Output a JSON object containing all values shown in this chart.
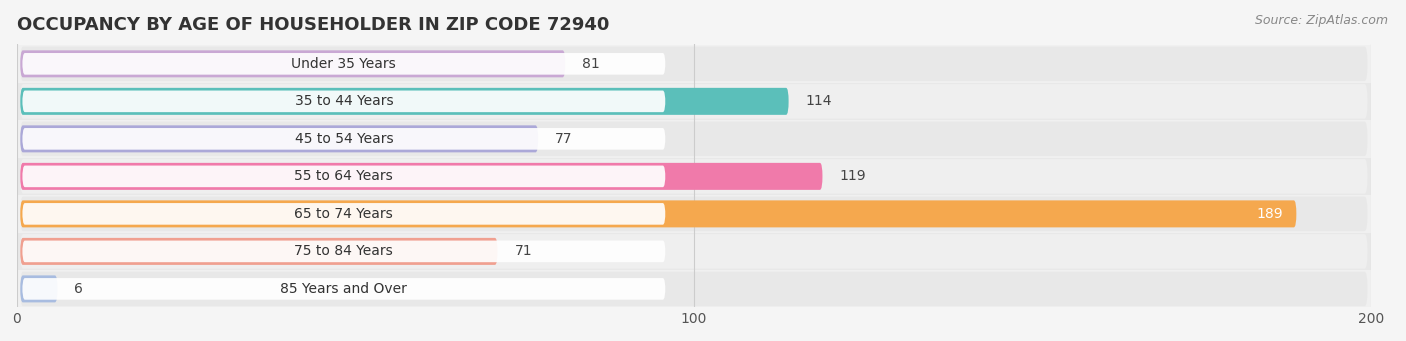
{
  "title": "OCCUPANCY BY AGE OF HOUSEHOLDER IN ZIP CODE 72940",
  "source": "Source: ZipAtlas.com",
  "categories": [
    "Under 35 Years",
    "35 to 44 Years",
    "45 to 54 Years",
    "55 to 64 Years",
    "65 to 74 Years",
    "75 to 84 Years",
    "85 Years and Over"
  ],
  "values": [
    81,
    114,
    77,
    119,
    189,
    71,
    6
  ],
  "bar_colors": [
    "#c9a8d4",
    "#5bbfba",
    "#aba8d8",
    "#f07aaa",
    "#f5a84e",
    "#f0a090",
    "#a8bce0"
  ],
  "label_colors": [
    "#555555",
    "#555555",
    "#555555",
    "#555555",
    "#ffffff",
    "#555555",
    "#555555"
  ],
  "xlim": [
    0,
    200
  ],
  "xticks": [
    0,
    100,
    200
  ],
  "bar_height": 0.72,
  "background_color": "#f5f5f5",
  "row_bg_light": "#f0f0f0",
  "row_bg_dark": "#e8e8e8",
  "title_fontsize": 13,
  "label_fontsize": 10,
  "value_fontsize": 10,
  "source_fontsize": 9
}
